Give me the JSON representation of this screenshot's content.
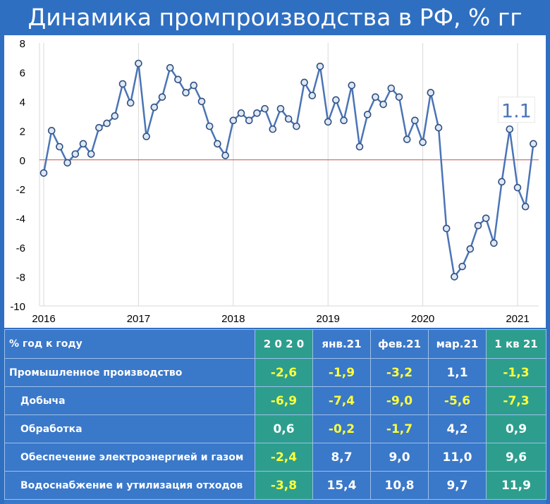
{
  "title": "Динамика промпроизводства в РФ, % гг",
  "chart_data": {
    "type": "line",
    "ylim": [
      -10,
      8
    ],
    "y_ticks": [
      "8",
      "6",
      "4",
      "2",
      "0",
      "-2",
      "-4",
      "-6",
      "-8",
      "-10"
    ],
    "x_tick_labels": [
      "2016",
      "2017",
      "2018",
      "2019",
      "2020",
      "2021"
    ],
    "annotation": "1.1",
    "series": [
      {
        "values": [
          -0.9,
          2.0,
          0.9,
          -0.2,
          0.4,
          1.1,
          0.4,
          2.2,
          2.5,
          3.0,
          5.2,
          3.9,
          6.6,
          1.6,
          3.6,
          4.3,
          6.3,
          5.5,
          4.6,
          5.1,
          4.0,
          2.3,
          1.1,
          0.3,
          2.7,
          3.2,
          2.7,
          3.2,
          3.5,
          2.1,
          3.5,
          2.8,
          2.3,
          5.3,
          4.4,
          6.4,
          2.6,
          4.1,
          2.7,
          5.1,
          0.9,
          3.1,
          4.3,
          3.8,
          4.9,
          4.3,
          1.4,
          2.7,
          1.2,
          4.6,
          2.2,
          -4.7,
          -8.0,
          -7.3,
          -6.1,
          -4.5,
          -4.0,
          -5.7,
          -1.5,
          2.1,
          -1.9,
          -3.2,
          1.1
        ]
      }
    ],
    "line_color": "#4a74b6",
    "marker_fill": "#dfe8f5",
    "zero_line_color": "#c0504d",
    "annotation_color": "#4a74b6"
  },
  "table": {
    "header": [
      "% год к году",
      "2 0 2 0",
      "янв.21",
      "фев.21",
      "мар.21",
      "1 кв 21"
    ],
    "rows": [
      {
        "label": "Промышленное производство",
        "sub": false,
        "values": [
          "-2,6",
          "-1,9",
          "-3,2",
          "1,1",
          "-1,3"
        ]
      },
      {
        "label": "Добыча",
        "sub": true,
        "values": [
          "-6,9",
          "-7,4",
          "-9,0",
          "-5,6",
          "-7,3"
        ]
      },
      {
        "label": "Обработка",
        "sub": true,
        "values": [
          "0,6",
          "-0,2",
          "-1,7",
          "4,2",
          "0,9"
        ]
      },
      {
        "label": "Обеспечение электроэнергией и газом",
        "sub": true,
        "values": [
          "-2,4",
          "8,7",
          "9,0",
          "11,0",
          "9,6"
        ]
      },
      {
        "label": "Водоснабжение и утилизация отходов",
        "sub": true,
        "values": [
          "-3,8",
          "15,4",
          "10,8",
          "9,7",
          "11,9"
        ]
      }
    ],
    "colors": {
      "header_bg": "#3a78c9",
      "highlight_col": "#2d9e8e",
      "negative_text": "#ffff3a"
    }
  }
}
